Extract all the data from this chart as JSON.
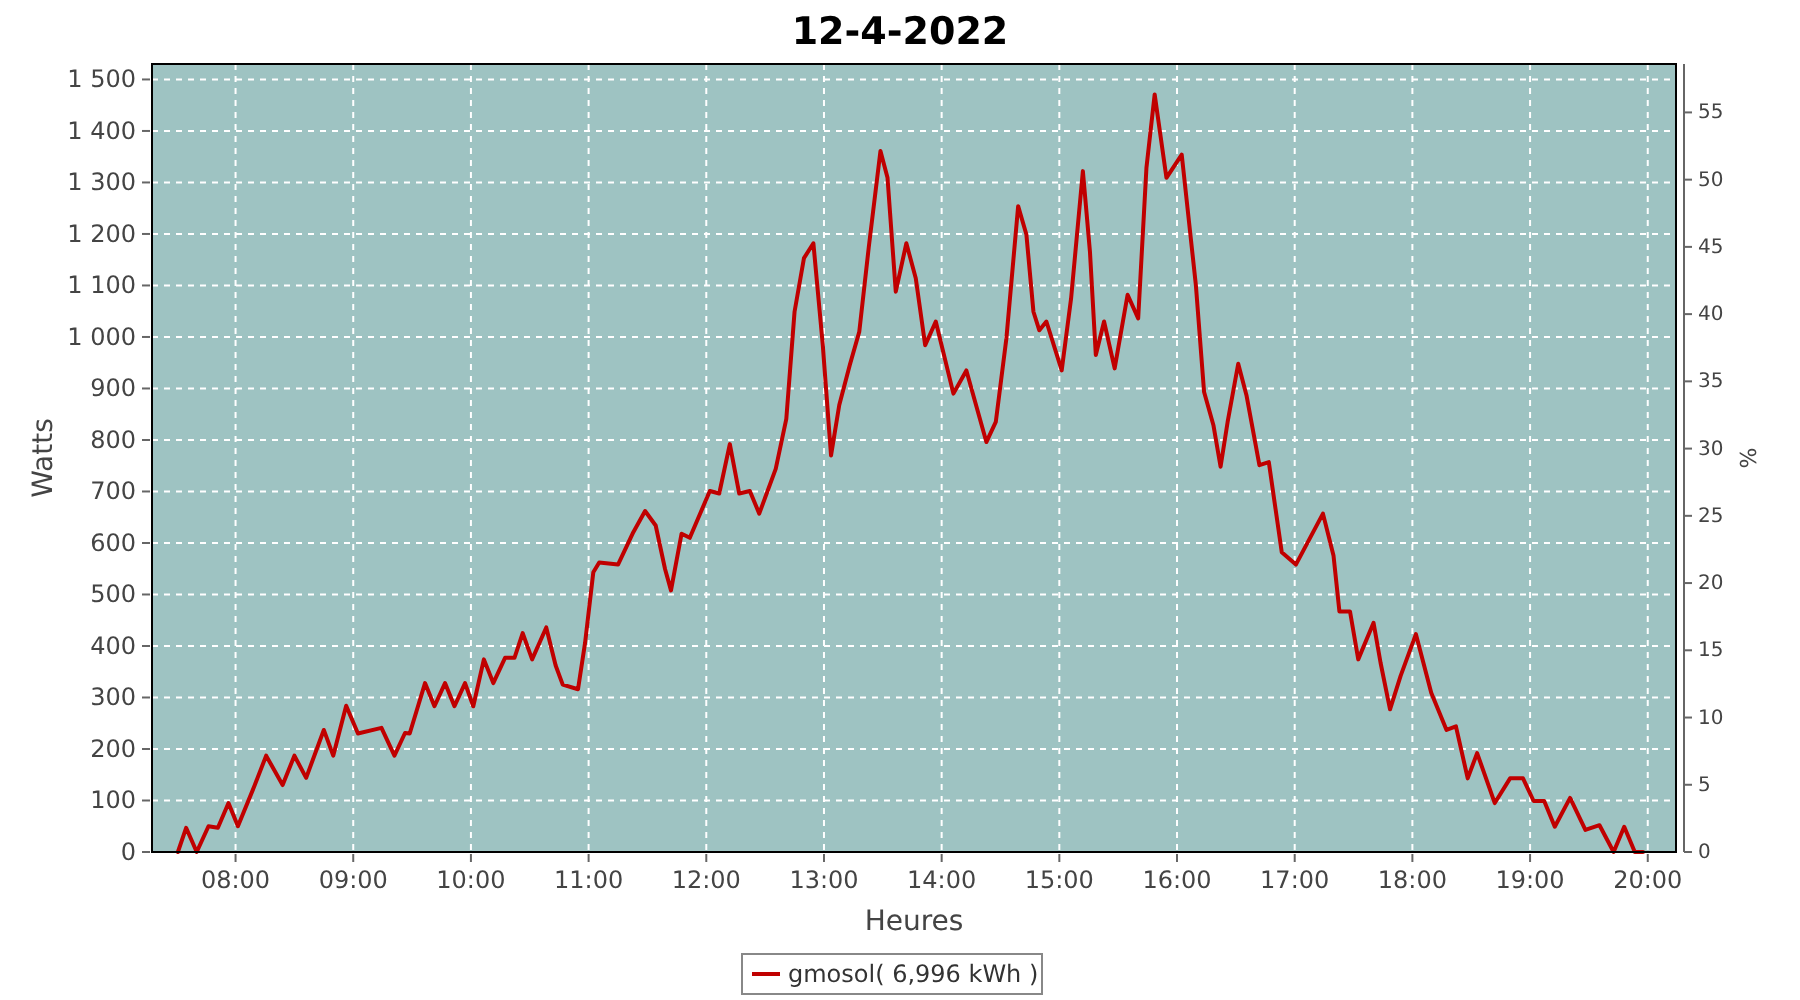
{
  "chart_data": {
    "type": "line",
    "title": "12-4-2022",
    "xlabel": "Heures",
    "ylabel": "Watts",
    "y2label": "%",
    "x": [
      7.51,
      7.58,
      7.67,
      7.77,
      7.85,
      7.94,
      8.02,
      8.16,
      8.26,
      8.4,
      8.5,
      8.6,
      8.75,
      8.83,
      8.94,
      9.04,
      9.24,
      9.35,
      9.44,
      9.48,
      9.61,
      9.69,
      9.78,
      9.86,
      9.95,
      10.02,
      10.11,
      10.19,
      10.29,
      10.37,
      10.44,
      10.52,
      10.64,
      10.72,
      10.78,
      10.91,
      10.97,
      11.04,
      11.09,
      11.25,
      11.38,
      11.48,
      11.57,
      11.65,
      11.7,
      11.79,
      11.86,
      12.03,
      12.11,
      12.2,
      12.28,
      12.37,
      12.45,
      12.59,
      12.68,
      12.75,
      12.83,
      12.91,
      12.99,
      13.06,
      13.13,
      13.22,
      13.3,
      13.38,
      13.48,
      13.54,
      13.61,
      13.7,
      13.78,
      13.86,
      13.95,
      14.1,
      14.21,
      14.38,
      14.46,
      14.55,
      14.65,
      14.72,
      14.78,
      14.83,
      14.89,
      15.02,
      15.1,
      15.2,
      15.26,
      15.31,
      15.38,
      15.47,
      15.58,
      15.67,
      15.74,
      15.81,
      15.91,
      16.04,
      16.16,
      16.23,
      16.31,
      16.37,
      16.43,
      16.52,
      16.59,
      16.7,
      16.78,
      16.89,
      17.01,
      17.24,
      17.33,
      17.38,
      17.47,
      17.54,
      17.67,
      17.73,
      17.81,
      17.9,
      18.03,
      18.16,
      18.29,
      18.37,
      18.47,
      18.55,
      18.7,
      18.83,
      18.94,
      19.03,
      19.12,
      19.21,
      19.34,
      19.47,
      19.59,
      19.71,
      19.8,
      19.89,
      19.96
    ],
    "series": [
      {
        "name": "gmosol( 6,996 kWh )",
        "color": "#c00000",
        "values": [
          0,
          47,
          0,
          50,
          47,
          95,
          50,
          128,
          187,
          130,
          187,
          144,
          237,
          187,
          284,
          230,
          241,
          187,
          231,
          230,
          328,
          283,
          328,
          283,
          328,
          283,
          374,
          328,
          377,
          377,
          425,
          374,
          436,
          362,
          325,
          316,
          406,
          543,
          562,
          558,
          621,
          662,
          634,
          549,
          508,
          618,
          610,
          701,
          696,
          792,
          696,
          701,
          657,
          744,
          841,
          1049,
          1153,
          1182,
          984,
          770,
          868,
          946,
          1010,
          1173,
          1361,
          1309,
          1088,
          1182,
          1114,
          984,
          1030,
          890,
          935,
          796,
          835,
          997,
          1254,
          1199,
          1049,
          1013,
          1030,
          935,
          1075,
          1322,
          1166,
          965,
          1030,
          939,
          1082,
          1036,
          1328,
          1471,
          1309,
          1354,
          1101,
          893,
          828,
          748,
          835,
          948,
          887,
          751,
          757,
          582,
          558,
          657,
          575,
          467,
          467,
          374,
          445,
          367,
          277,
          342,
          423,
          309,
          237,
          244,
          143,
          192,
          95,
          143,
          143,
          99,
          99,
          49,
          105,
          43,
          52,
          0,
          49,
          0,
          0
        ]
      }
    ],
    "xlim": [
      7.29,
      20.24
    ],
    "xticks": [
      {
        "value": 8,
        "label": "08:00"
      },
      {
        "value": 9,
        "label": "09:00"
      },
      {
        "value": 10,
        "label": "10:00"
      },
      {
        "value": 11,
        "label": "11:00"
      },
      {
        "value": 12,
        "label": "12:00"
      },
      {
        "value": 13,
        "label": "13:00"
      },
      {
        "value": 14,
        "label": "14:00"
      },
      {
        "value": 15,
        "label": "15:00"
      },
      {
        "value": 16,
        "label": "16:00"
      },
      {
        "value": 17,
        "label": "17:00"
      },
      {
        "value": 18,
        "label": "18:00"
      },
      {
        "value": 19,
        "label": "19:00"
      },
      {
        "value": 20,
        "label": "20:00"
      }
    ],
    "ylim": [
      0,
      1530
    ],
    "yticks": [
      0,
      100,
      200,
      300,
      400,
      500,
      600,
      700,
      800,
      900,
      {
        "value": 1000,
        "label": "1 000"
      },
      {
        "value": 1100,
        "label": "1 100"
      },
      {
        "value": 1200,
        "label": "1 200"
      },
      {
        "value": 1300,
        "label": "1 300"
      },
      {
        "value": 1400,
        "label": "1 400"
      },
      {
        "value": 1500,
        "label": "1 500"
      }
    ],
    "y2lim": [
      0,
      58.6
    ],
    "y2ticks": [
      0,
      5,
      10,
      15,
      20,
      25,
      30,
      35,
      40,
      45,
      50,
      55
    ],
    "grid": true,
    "legend": "bottom",
    "marker": "none",
    "line_style": "solid"
  }
}
